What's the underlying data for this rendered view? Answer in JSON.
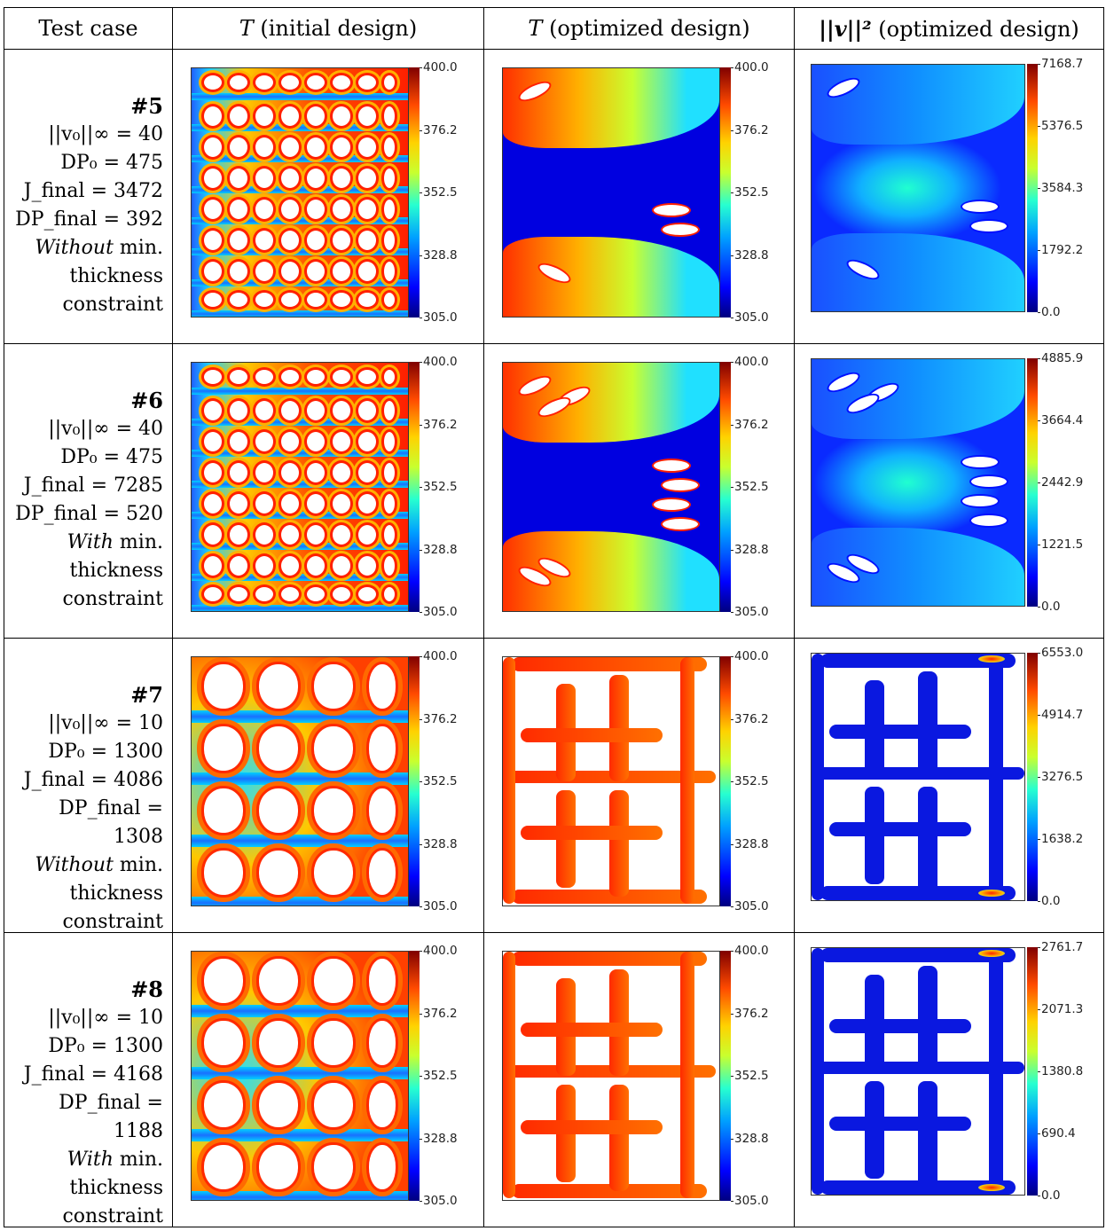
{
  "header": {
    "col0": "Test case",
    "col1_var": "T",
    "col1_rest": " (initial design)",
    "col2_var": "T",
    "col2_rest": " (optimized design)",
    "col3_var": "||v||²",
    "col3_rest": " (optimized design)"
  },
  "temperature_ticks": [
    "400.0",
    "376.2",
    "352.5",
    "328.8",
    "305.0"
  ],
  "rows": [
    {
      "num": "#5",
      "v0": "||v₀||∞ = 40",
      "dp0": "DP₀ = 475",
      "jfinal": "J_final = 3472",
      "dpfinal": "DP_final = 392",
      "mode": "Without",
      "mode_rest": " min.",
      "line7": "thickness",
      "line8": "constraint",
      "vel_ticks": [
        "7168.7",
        "5376.5",
        "3584.3",
        "1792.2",
        "0.0"
      ]
    },
    {
      "num": "#6",
      "v0": "||v₀||∞ = 40",
      "dp0": "DP₀ = 475",
      "jfinal": "J_final = 7285",
      "dpfinal": "DP_final = 520",
      "mode": "With",
      "mode_rest": " min.",
      "line7": "thickness",
      "line8": "constraint",
      "vel_ticks": [
        "4885.9",
        "3664.4",
        "2442.9",
        "1221.5",
        "0.0"
      ]
    },
    {
      "num": "#7",
      "v0": "||v₀||∞ = 10",
      "dp0": "DP₀ = 1300",
      "jfinal": "J_final = 4086",
      "dpfinal": "DP_final = 1308",
      "mode": "Without",
      "mode_rest": " min.",
      "line7": "thickness",
      "line8": "constraint",
      "vel_ticks": [
        "6553.0",
        "4914.7",
        "3276.5",
        "1638.2",
        "0.0"
      ]
    },
    {
      "num": "#8",
      "v0": "||v₀||∞ = 10",
      "dp0": "DP₀ = 1300",
      "jfinal": "J_final = 4168",
      "dpfinal": "DP_final = 1188",
      "mode": "With",
      "mode_rest": " min.",
      "line7": "thickness",
      "line8": "constraint",
      "vel_ticks": [
        "2761.7",
        "2071.3",
        "1380.8",
        "690.4",
        "0.0"
      ]
    }
  ]
}
